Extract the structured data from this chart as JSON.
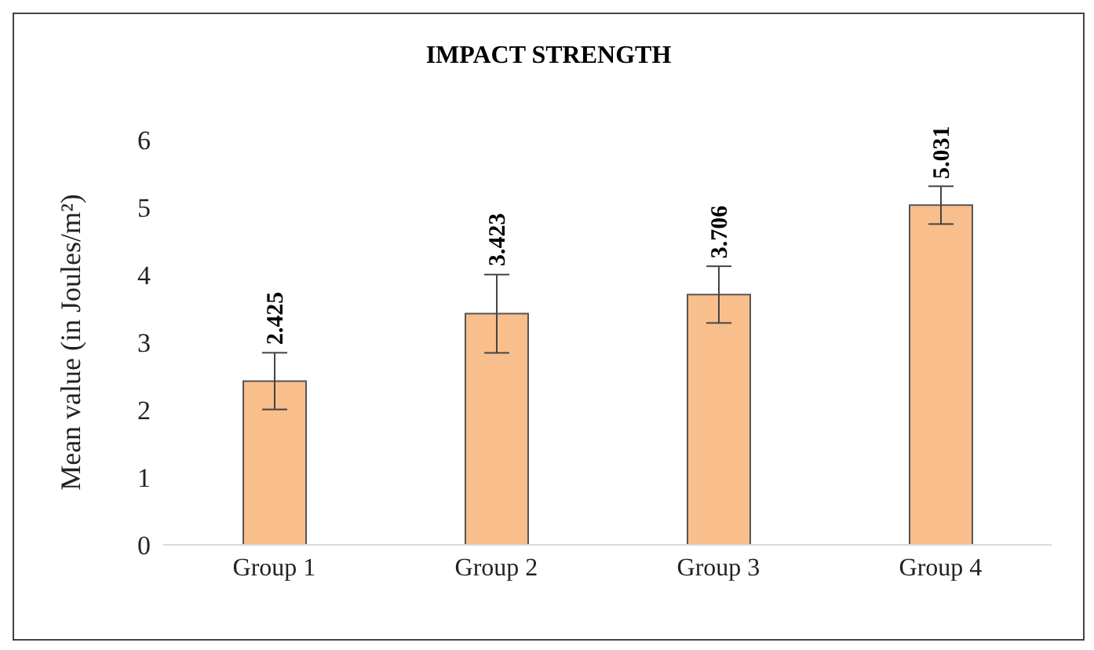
{
  "chart_data": {
    "type": "bar",
    "title": "IMPACT STRENGTH",
    "ylabel": "Mean value (in Joules/m²)",
    "categories": [
      "Group 1",
      "Group 2",
      "Group 3",
      "Group 4"
    ],
    "values": [
      2.425,
      3.423,
      3.706,
      5.031
    ],
    "errors": [
      0.42,
      0.58,
      0.42,
      0.28
    ],
    "color": "#f8be8c",
    "ylim": [
      0,
      6
    ],
    "yticks": [
      0,
      1,
      2,
      3,
      4,
      5,
      6
    ],
    "grid": false,
    "data_labels": true
  }
}
